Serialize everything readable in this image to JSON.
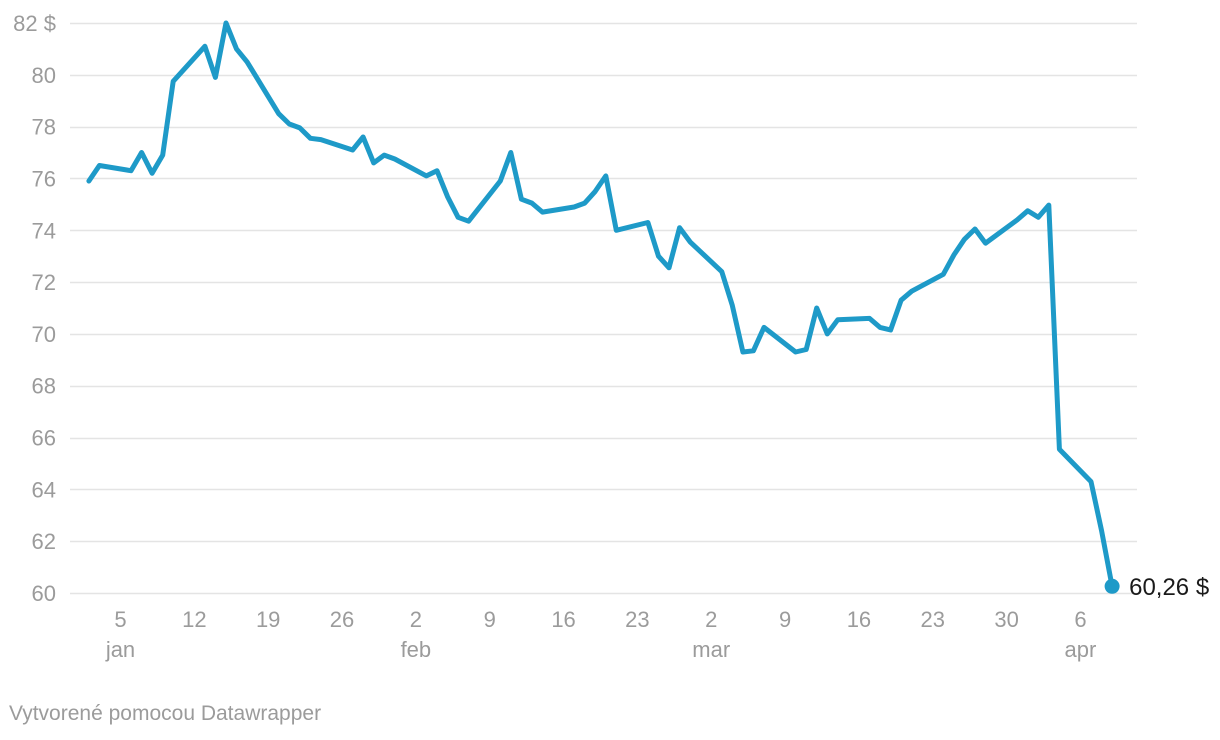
{
  "chart_data": {
    "type": "line",
    "title": "",
    "unit": "$",
    "grid": "horizontal",
    "legend": "none",
    "ylim": [
      60,
      82
    ],
    "dates": [
      "2025-01-02",
      "2025-01-03",
      "2025-01-06",
      "2025-01-07",
      "2025-01-08",
      "2025-01-09",
      "2025-01-10",
      "2025-01-13",
      "2025-01-14",
      "2025-01-15",
      "2025-01-16",
      "2025-01-17",
      "2025-01-20",
      "2025-01-21",
      "2025-01-22",
      "2025-01-23",
      "2025-01-24",
      "2025-01-27",
      "2025-01-28",
      "2025-01-29",
      "2025-01-30",
      "2025-01-31",
      "2025-02-03",
      "2025-02-04",
      "2025-02-05",
      "2025-02-06",
      "2025-02-07",
      "2025-02-10",
      "2025-02-11",
      "2025-02-12",
      "2025-02-13",
      "2025-02-14",
      "2025-02-17",
      "2025-02-18",
      "2025-02-19",
      "2025-02-20",
      "2025-02-21",
      "2025-02-24",
      "2025-02-25",
      "2025-02-26",
      "2025-02-27",
      "2025-02-28",
      "2025-03-03",
      "2025-03-04",
      "2025-03-05",
      "2025-03-06",
      "2025-03-07",
      "2025-03-10",
      "2025-03-11",
      "2025-03-12",
      "2025-03-13",
      "2025-03-14",
      "2025-03-17",
      "2025-03-18",
      "2025-03-19",
      "2025-03-20",
      "2025-03-21",
      "2025-03-24",
      "2025-03-25",
      "2025-03-26",
      "2025-03-27",
      "2025-03-28",
      "2025-03-31",
      "2025-04-01",
      "2025-04-02",
      "2025-04-03",
      "2025-04-04",
      "2025-04-07",
      "2025-04-08",
      "2025-04-09"
    ],
    "values": [
      75.9,
      76.5,
      76.3,
      77.0,
      76.2,
      76.9,
      79.75,
      81.1,
      79.9,
      82.0,
      81.0,
      80.5,
      78.5,
      78.1,
      77.95,
      77.55,
      77.5,
      77.1,
      77.6,
      76.6,
      76.9,
      76.75,
      76.1,
      76.3,
      75.3,
      74.5,
      74.35,
      75.9,
      77.0,
      75.2,
      75.05,
      74.7,
      74.9,
      75.05,
      75.5,
      76.1,
      74.0,
      74.3,
      73.0,
      72.55,
      74.1,
      73.55,
      72.4,
      71.1,
      69.3,
      69.35,
      70.25,
      69.3,
      69.4,
      71.0,
      70.0,
      70.55,
      70.6,
      70.25,
      70.15,
      71.3,
      71.65,
      72.3,
      73.05,
      73.65,
      74.05,
      73.5,
      74.4,
      74.75,
      74.5,
      74.97,
      65.55,
      64.3,
      62.4,
      60.26
    ],
    "end_value": 60.26,
    "end_label": "60,26 $",
    "y_ticks": [
      {
        "value": 82,
        "label": "82 $"
      },
      {
        "value": 80,
        "label": "80"
      },
      {
        "value": 78,
        "label": "78"
      },
      {
        "value": 76,
        "label": "76"
      },
      {
        "value": 74,
        "label": "74"
      },
      {
        "value": 72,
        "label": "72"
      },
      {
        "value": 70,
        "label": "70"
      },
      {
        "value": 68,
        "label": "68"
      },
      {
        "value": 66,
        "label": "66"
      },
      {
        "value": 64,
        "label": "64"
      },
      {
        "value": 62,
        "label": "62"
      },
      {
        "value": 60,
        "label": "60"
      }
    ],
    "x_ticks": [
      {
        "date": "2025-01-05",
        "label": "5",
        "month": "jan"
      },
      {
        "date": "2025-01-12",
        "label": "12",
        "month": ""
      },
      {
        "date": "2025-01-19",
        "label": "19",
        "month": ""
      },
      {
        "date": "2025-01-26",
        "label": "26",
        "month": ""
      },
      {
        "date": "2025-02-02",
        "label": "2",
        "month": "feb"
      },
      {
        "date": "2025-02-09",
        "label": "9",
        "month": ""
      },
      {
        "date": "2025-02-16",
        "label": "16",
        "month": ""
      },
      {
        "date": "2025-02-23",
        "label": "23",
        "month": ""
      },
      {
        "date": "2025-03-02",
        "label": "2",
        "month": "mar"
      },
      {
        "date": "2025-03-09",
        "label": "9",
        "month": ""
      },
      {
        "date": "2025-03-16",
        "label": "16",
        "month": ""
      },
      {
        "date": "2025-03-23",
        "label": "23",
        "month": ""
      },
      {
        "date": "2025-03-30",
        "label": "30",
        "month": ""
      },
      {
        "date": "2025-04-06",
        "label": "6",
        "month": "apr"
      }
    ],
    "colors": {
      "line": "#1e9ac8",
      "grid": "#e4e4e4",
      "axis_text": "#9b9b9b",
      "end_label_text": "#1a1a1a",
      "background": "#ffffff"
    }
  },
  "footer": {
    "attribution": "Vytvorené pomocou Datawrapper"
  }
}
